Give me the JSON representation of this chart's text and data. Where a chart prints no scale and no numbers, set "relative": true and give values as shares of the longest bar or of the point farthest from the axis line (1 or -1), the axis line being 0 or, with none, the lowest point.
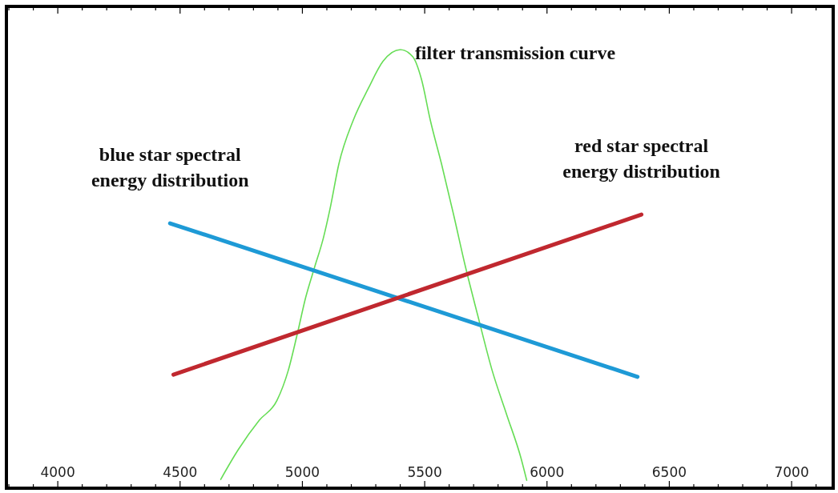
{
  "chart_data": {
    "type": "line",
    "relative": true,
    "tick_labels": "x",
    "xlim": [
      3790,
      7170
    ],
    "xticks": [
      {
        "value": 3800,
        "label": null
      },
      {
        "value": 3900,
        "label": null
      },
      4000,
      {
        "value": 4100,
        "label": null
      },
      {
        "value": 4200,
        "label": null
      },
      {
        "value": 4300,
        "label": null
      },
      {
        "value": 4400,
        "label": null
      },
      4500,
      {
        "value": 4600,
        "label": null
      },
      {
        "value": 4700,
        "label": null
      },
      {
        "value": 4800,
        "label": null
      },
      {
        "value": 4900,
        "label": null
      },
      5000,
      {
        "value": 5100,
        "label": null
      },
      {
        "value": 5200,
        "label": null
      },
      {
        "value": 5300,
        "label": null
      },
      {
        "value": 5400,
        "label": null
      },
      5500,
      {
        "value": 5600,
        "label": null
      },
      {
        "value": 5700,
        "label": null
      },
      {
        "value": 5800,
        "label": null
      },
      {
        "value": 5900,
        "label": null
      },
      6000,
      {
        "value": 6100,
        "label": null
      },
      {
        "value": 6200,
        "label": null
      },
      {
        "value": 6300,
        "label": null
      },
      {
        "value": 6400,
        "label": null
      },
      6500,
      {
        "value": 6600,
        "label": null
      },
      {
        "value": 6700,
        "label": null
      },
      {
        "value": 6800,
        "label": null
      },
      {
        "value": 6900,
        "label": null
      },
      7000,
      {
        "value": 7100,
        "label": null
      }
    ],
    "series": [
      {
        "name": "filter transmission curve",
        "color": "#66dd55",
        "x": [
          4666,
          4738,
          4824,
          4896,
          4942,
          4978,
          5014,
          5050,
          5086,
          5113,
          5149,
          5208,
          5270,
          5329,
          5401,
          5451,
          5487,
          5523,
          5569,
          5618,
          5667,
          5716,
          5776,
          5835,
          5894,
          5917
        ],
        "values": [
          0.02,
          0.088,
          0.155,
          0.2,
          0.268,
          0.349,
          0.436,
          0.504,
          0.571,
          0.637,
          0.739,
          0.839,
          0.912,
          0.973,
          1.0,
          0.984,
          0.932,
          0.839,
          0.739,
          0.624,
          0.504,
          0.396,
          0.268,
          0.168,
          0.068,
          0.018
        ]
      },
      {
        "name": "blue star spectral energy distribution",
        "color": "#1e9ad6",
        "x": [
          4459,
          6370
        ],
        "values": [
          0.604,
          0.254
        ]
      },
      {
        "name": "red star spectral energy distribution",
        "color": "#c0282f",
        "x": [
          4473,
          6386
        ],
        "values": [
          0.259,
          0.624
        ]
      }
    ]
  }
}
